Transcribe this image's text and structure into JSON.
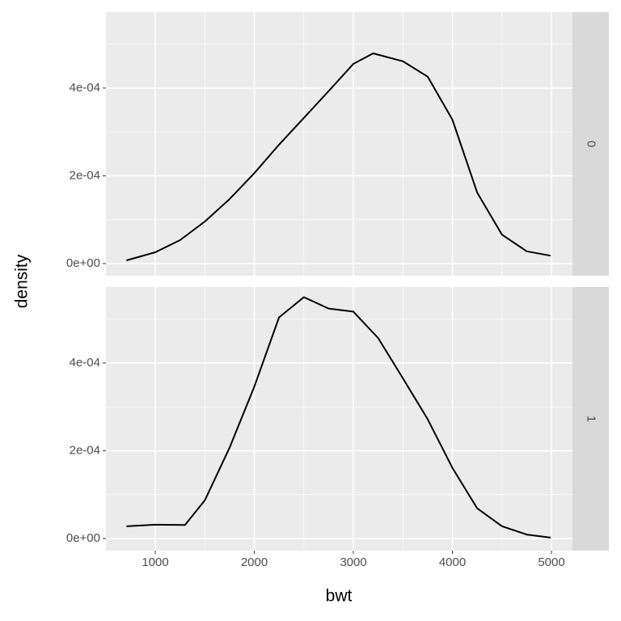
{
  "chart_data": {
    "type": "line",
    "xlabel": "bwt",
    "ylabel": "density",
    "color": "#000000",
    "grid": true,
    "xlim": [
      502,
      5212
    ],
    "xticks": [
      1000,
      2000,
      3000,
      4000,
      5000
    ],
    "xminor": [
      1500,
      2500,
      3500,
      4500
    ],
    "ylim": [
      -2.76e-05,
      0.000573
    ],
    "yticks": [
      {
        "value": 0,
        "label": "0e+00"
      },
      {
        "value": 0.0002,
        "label": "2e-04"
      },
      {
        "value": 0.0004,
        "label": "4e-04"
      }
    ],
    "yminor": [
      0.0001,
      0.0003,
      0.0005
    ],
    "panels": [
      {
        "label": "0",
        "x": [
          709,
          1000,
          1250,
          1500,
          1750,
          2000,
          2250,
          2500,
          2750,
          3000,
          3200,
          3500,
          3750,
          4000,
          4250,
          4500,
          4750,
          4990
        ],
        "values": [
          7.4e-06,
          2.58e-05,
          5.35e-05,
          9.59e-05,
          0.000147,
          0.000206,
          0.000271,
          0.000332,
          0.000393,
          0.000455,
          0.000479,
          0.000461,
          0.000426,
          0.000328,
          0.000162,
          6.6e-05,
          2.8e-05,
          1.8e-05
        ]
      },
      {
        "label": "1",
        "x": [
          709,
          1000,
          1300,
          1500,
          1750,
          2000,
          2250,
          2500,
          2750,
          3000,
          3250,
          3500,
          3750,
          4000,
          4250,
          4500,
          4750,
          4990
        ],
        "values": [
          2.78e-05,
          3.15e-05,
          3.1e-05,
          8.7e-05,
          0.000207,
          0.000346,
          0.000504,
          0.00055,
          0.000524,
          0.000517,
          0.000457,
          0.000365,
          0.000272,
          0.000161,
          6.9e-05,
          2.8e-05,
          9e-06,
          2e-06
        ]
      }
    ]
  }
}
